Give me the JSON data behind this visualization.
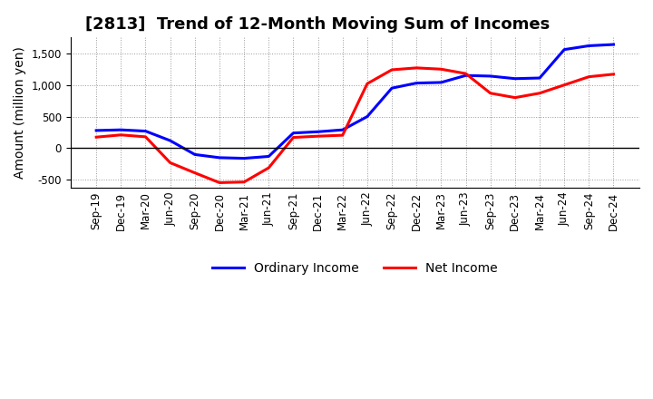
{
  "title": "[2813]  Trend of 12-Month Moving Sum of Incomes",
  "ylabel": "Amount (million yen)",
  "x_labels": [
    "Sep-19",
    "Dec-19",
    "Mar-20",
    "Jun-20",
    "Sep-20",
    "Dec-20",
    "Mar-21",
    "Jun-21",
    "Sep-21",
    "Dec-21",
    "Mar-22",
    "Jun-22",
    "Sep-22",
    "Dec-22",
    "Mar-23",
    "Jun-23",
    "Sep-23",
    "Dec-23",
    "Mar-24",
    "Jun-24",
    "Sep-24",
    "Dec-24"
  ],
  "ordinary_income": [
    280,
    290,
    270,
    120,
    -100,
    -150,
    -160,
    -130,
    240,
    260,
    290,
    500,
    950,
    1030,
    1040,
    1150,
    1140,
    1100,
    1110,
    1560,
    1620,
    1640
  ],
  "net_income": [
    175,
    210,
    180,
    -230,
    -390,
    -545,
    -535,
    -310,
    170,
    190,
    205,
    1020,
    1240,
    1270,
    1250,
    1180,
    870,
    800,
    870,
    1000,
    1130,
    1170
  ],
  "ordinary_color": "#0000ff",
  "net_color": "#ff0000",
  "ylim": [
    -620,
    1750
  ],
  "yticks": [
    -500,
    0,
    500,
    1000,
    1500
  ],
  "background_color": "#ffffff",
  "grid_color": "#999999",
  "title_fontsize": 13,
  "axis_label_fontsize": 10,
  "tick_fontsize": 8.5,
  "legend_fontsize": 10,
  "line_width": 2.2
}
